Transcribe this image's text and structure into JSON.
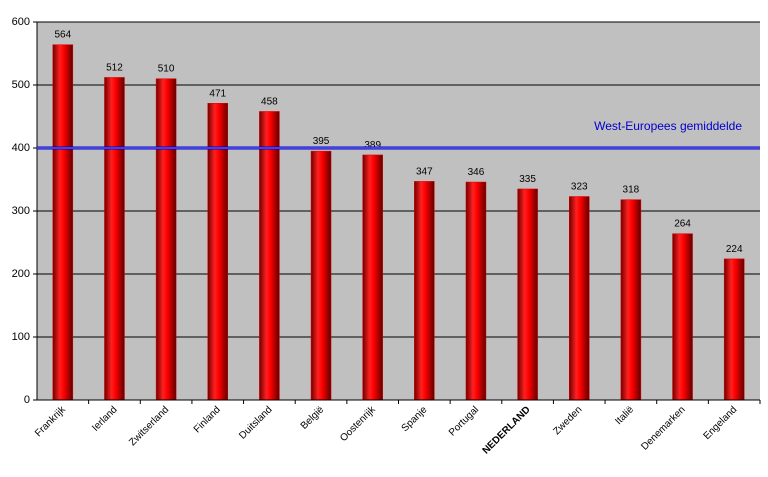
{
  "chart_data": {
    "type": "bar",
    "categories": [
      "Frankrijk",
      "Ierland",
      "Zwitserland",
      "Finland",
      "Duitsland",
      "België",
      "Oostenrijk",
      "Spanje",
      "Portugal",
      "NEDERLAND",
      "Zweden",
      "Italië",
      "Denemarken",
      "Engeland"
    ],
    "values": [
      564,
      512,
      510,
      471,
      458,
      395,
      389,
      347,
      346,
      335,
      323,
      318,
      264,
      224
    ],
    "color": "#e00000",
    "bold_category_index": 9,
    "ylim": [
      0,
      600
    ],
    "yticks": [
      0,
      100,
      200,
      300,
      400,
      500,
      600
    ],
    "grid": true,
    "plot_background": "#c0c0c0",
    "reference_line": {
      "value": 400,
      "label": "West-Europees gemiddelde",
      "color": "#0000cc"
    }
  }
}
